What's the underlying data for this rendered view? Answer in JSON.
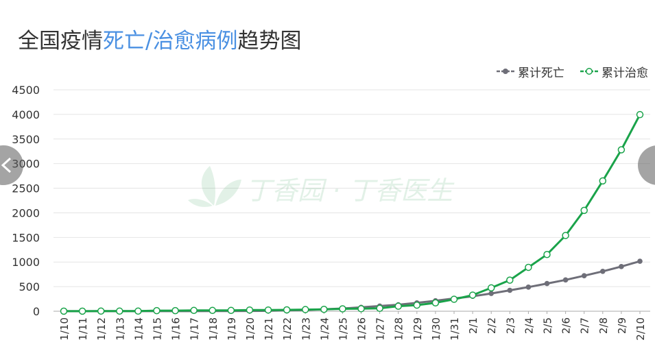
{
  "title": {
    "part1": "全国疫情",
    "part2": "死亡/治愈病例",
    "part3": "趋势图"
  },
  "watermark": "丁香园 · 丁香医生",
  "colors": {
    "death": "#6e6e78",
    "cured": "#1aa34a",
    "title_highlight": "#4a90e2",
    "grid": "#e4e4e4"
  },
  "chart_data": {
    "type": "line",
    "title": "全国疫情死亡/治愈病例趋势图",
    "categories": [
      "1/10",
      "1/11",
      "1/12",
      "1/13",
      "1/14",
      "1/15",
      "1/16",
      "1/17",
      "1/18",
      "1/19",
      "1/20",
      "1/21",
      "1/22",
      "1/23",
      "1/24",
      "1/25",
      "1/26",
      "1/27",
      "1/28",
      "1/29",
      "1/30",
      "1/31",
      "2/1",
      "2/2",
      "2/3",
      "2/4",
      "2/5",
      "2/6",
      "2/7",
      "2/8",
      "2/9",
      "2/10"
    ],
    "ylim": [
      0,
      4500
    ],
    "yticks": [
      0,
      500,
      1000,
      1500,
      2000,
      2500,
      3000,
      3500,
      4000,
      4500
    ],
    "grid": true,
    "legend_position": "top-right",
    "series": [
      {
        "name": "累计死亡",
        "color": "#6e6e78",
        "marker": "filled",
        "values": [
          1,
          1,
          1,
          1,
          1,
          1,
          2,
          2,
          3,
          3,
          6,
          9,
          17,
          25,
          41,
          56,
          80,
          106,
          132,
          170,
          213,
          259,
          304,
          361,
          425,
          490,
          563,
          636,
          722,
          811,
          908,
          1016
        ]
      },
      {
        "name": "累计治愈",
        "color": "#1aa34a",
        "marker": "hollow",
        "values": [
          2,
          2,
          3,
          3,
          3,
          12,
          12,
          17,
          17,
          17,
          25,
          25,
          28,
          34,
          38,
          49,
          51,
          60,
          103,
          124,
          171,
          243,
          328,
          475,
          632,
          892,
          1153,
          1540,
          2050,
          2649,
          3281,
          3996
        ]
      }
    ]
  }
}
